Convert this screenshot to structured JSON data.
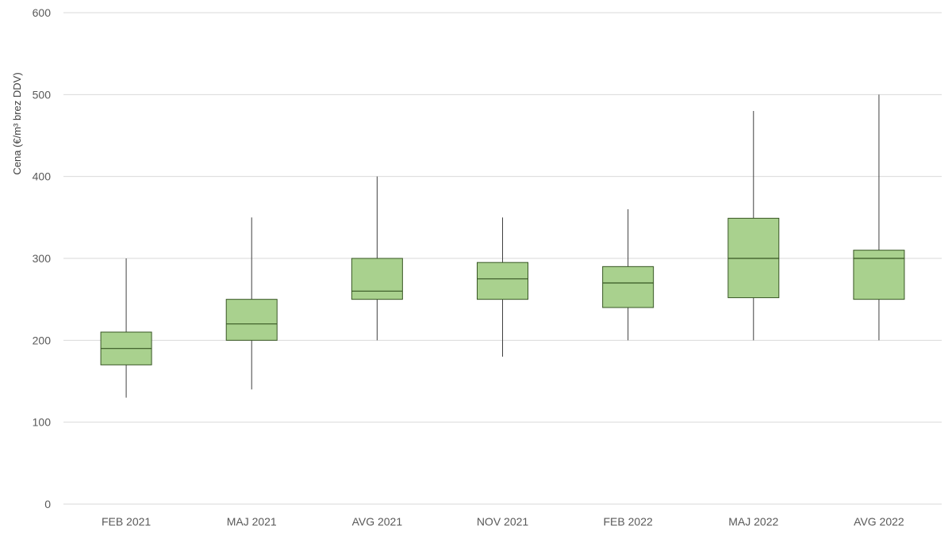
{
  "chart_data": {
    "type": "boxplot",
    "title": "",
    "xlabel": "",
    "ylabel": "Cena (€/m³ brez DDV)",
    "ylim": [
      0,
      600
    ],
    "yticks": [
      0,
      100,
      200,
      300,
      400,
      500,
      600
    ],
    "grid": true,
    "box_color": "#a9d18e",
    "box_edge_color": "#375623",
    "categories": [
      "FEB 2021",
      "MAJ 2021",
      "AVG 2021",
      "NOV 2021",
      "FEB 2022",
      "MAJ 2022",
      "AVG 2022"
    ],
    "boxes": [
      {
        "min": 130,
        "q1": 170,
        "median": 190,
        "q3": 210,
        "max": 300
      },
      {
        "min": 140,
        "q1": 200,
        "median": 220,
        "q3": 250,
        "max": 350
      },
      {
        "min": 200,
        "q1": 250,
        "median": 260,
        "q3": 300,
        "max": 400
      },
      {
        "min": 180,
        "q1": 250,
        "median": 275,
        "q3": 295,
        "max": 350
      },
      {
        "min": 200,
        "q1": 240,
        "median": 270,
        "q3": 290,
        "max": 360
      },
      {
        "min": 200,
        "q1": 252,
        "median": 300,
        "q3": 349,
        "max": 480
      },
      {
        "min": 200,
        "q1": 250,
        "median": 300,
        "q3": 310,
        "max": 500
      }
    ]
  }
}
